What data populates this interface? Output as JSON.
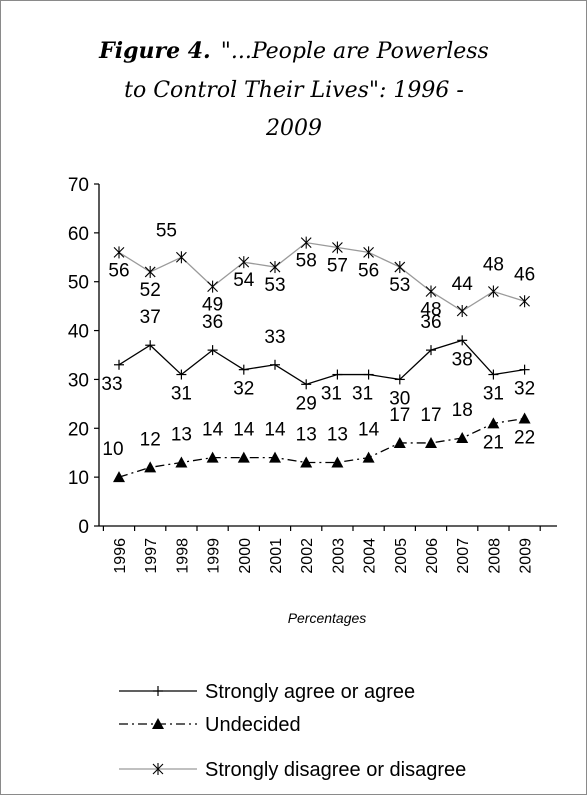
{
  "chart_data": {
    "type": "line",
    "title": {
      "figure_label": "Figure 4.",
      "line1_rest": "\"...People are Powerless",
      "line2": "to Control Their Lives\":  1996 -",
      "line3": "2009"
    },
    "xlabel": "Percentages",
    "ylabel": "",
    "ylim": [
      0,
      70
    ],
    "yticks": [
      "0",
      "10",
      "20",
      "30",
      "40",
      "50",
      "60",
      "70"
    ],
    "categories": [
      "1996",
      "1997",
      "1998",
      "1999",
      "2000",
      "2001",
      "2002",
      "2003",
      "2004",
      "2005",
      "2006",
      "2007",
      "2008",
      "2009"
    ],
    "grid": false,
    "legend_position": "bottom",
    "series": [
      {
        "name": "Strongly agree or agree",
        "marker": "plus",
        "line_style": "solid",
        "color": "#000000",
        "values": [
          33,
          37,
          31,
          36,
          32,
          33,
          29,
          31,
          31,
          30,
          36,
          38,
          31,
          32
        ],
        "labels": [
          "33",
          "37",
          "31",
          "36",
          "32",
          "33",
          "29",
          "31",
          "31",
          "30",
          "36",
          "38",
          "31",
          "32"
        ]
      },
      {
        "name": "Undecided",
        "marker": "triangle",
        "line_style": "dash-dot",
        "color": "#000000",
        "values": [
          10,
          12,
          13,
          14,
          14,
          14,
          13,
          13,
          14,
          17,
          17,
          18,
          21,
          22
        ],
        "labels": [
          "10",
          "12",
          "13",
          "14",
          "14",
          "14",
          "13",
          "13",
          "14",
          "17",
          "17",
          "18",
          "21",
          "22"
        ]
      },
      {
        "name": "Strongly disagree or disagree",
        "marker": "asterisk",
        "line_style": "solid",
        "color": "#9a9a9a",
        "values": [
          56,
          52,
          55,
          49,
          54,
          53,
          58,
          57,
          56,
          53,
          48,
          44,
          48,
          46
        ],
        "labels": [
          "56",
          "52",
          "55",
          "49",
          "54",
          "53",
          "58",
          "57",
          "56",
          "53",
          "48",
          "44",
          "48",
          "46"
        ]
      }
    ]
  }
}
